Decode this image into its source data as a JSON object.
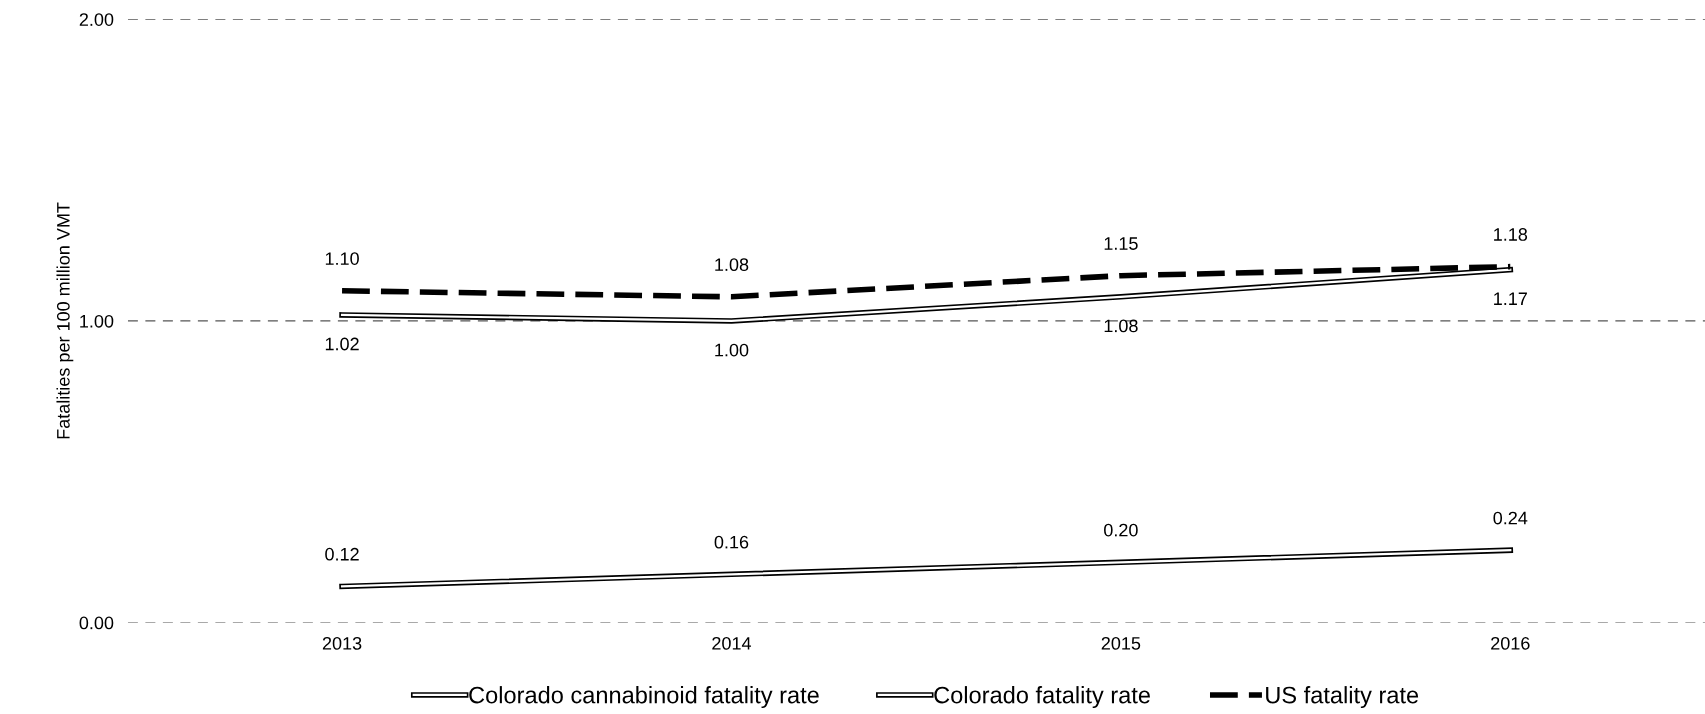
{
  "chart_data": {
    "type": "line",
    "ylabel": "Fatalities per 100 million VMT",
    "categories": [
      "2013",
      "2014",
      "2015",
      "2016"
    ],
    "series": [
      {
        "name": "Colorado cannabinoid fatality rate",
        "color": "#000000",
        "line_style": "solid",
        "values": [
          0.12,
          0.16,
          0.2,
          0.24
        ],
        "value_labels": [
          "0.12",
          "0.16",
          "0.20",
          "0.24"
        ]
      },
      {
        "name": "Colorado fatality rate",
        "color": "#000000",
        "line_style": "solid",
        "values": [
          1.02,
          1.0,
          1.08,
          1.17
        ],
        "value_labels": [
          "1.02",
          "1.00",
          "1.08",
          "1.17"
        ]
      },
      {
        "name": "US fatality rate",
        "color": "#000000",
        "line_style": "dashed",
        "values": [
          1.1,
          1.08,
          1.15,
          1.18
        ],
        "value_labels": [
          "1.10",
          "1.08",
          "1.15",
          "1.18"
        ]
      }
    ],
    "ylim": [
      0,
      2
    ],
    "yticks": [
      {
        "value": 0,
        "label": "0.00"
      },
      {
        "value": 1,
        "label": "1.00"
      },
      {
        "value": 2,
        "label": "2.00"
      }
    ],
    "grid": "y",
    "legend": "bottom",
    "marker": "none"
  }
}
